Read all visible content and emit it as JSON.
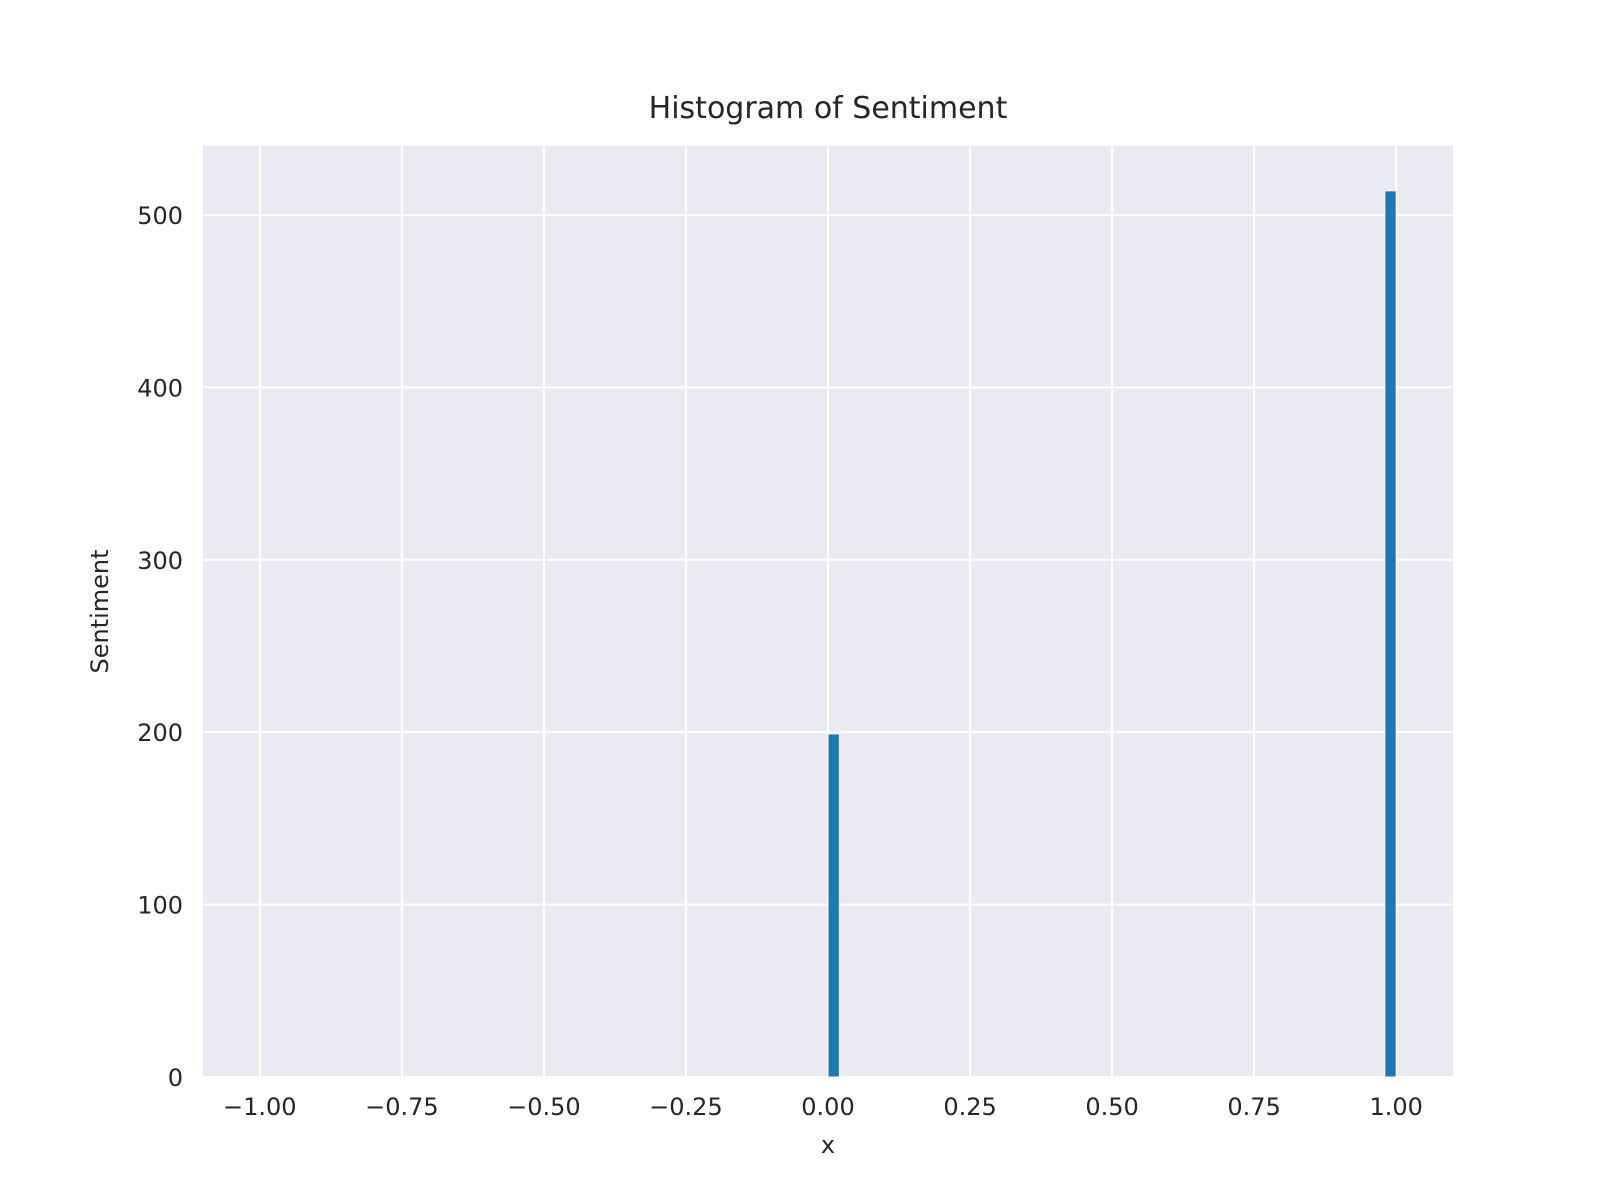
{
  "chart_data": {
    "type": "bar",
    "title": "Histogram of Sentiment",
    "xlabel": "x",
    "ylabel": "Sentiment",
    "xlim": [
      -1.1,
      1.1
    ],
    "ylim": [
      0,
      540
    ],
    "x_ticks": [
      -1.0,
      -0.75,
      -0.5,
      -0.25,
      0.0,
      0.25,
      0.5,
      0.75,
      1.0
    ],
    "x_tick_labels": [
      "−1.00",
      "−0.75",
      "−0.50",
      "−0.25",
      "0.00",
      "0.25",
      "0.50",
      "0.75",
      "1.00"
    ],
    "y_ticks": [
      0,
      100,
      200,
      300,
      400,
      500
    ],
    "y_tick_labels": [
      "0",
      "100",
      "200",
      "300",
      "400",
      "500"
    ],
    "grid": true,
    "bar_color": "#1f77b4",
    "plot_background": "#eaeaf2",
    "grid_color": "#ffffff",
    "bin_width": 0.02,
    "bars": [
      {
        "x_start": 0.0,
        "x_end": 0.02,
        "count": 199
      },
      {
        "x_start": 0.98,
        "x_end": 1.0,
        "count": 514
      }
    ]
  }
}
